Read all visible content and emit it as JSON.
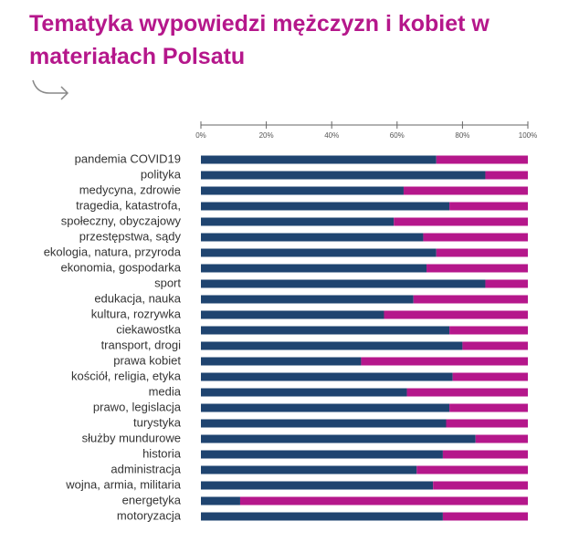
{
  "chart_data": {
    "type": "stacked-bar-horizontal",
    "title": "Tematyka wypowiedzi mężczyzn i kobiet w materiałach Polsatu",
    "categories": [
      "pandemia COVID19",
      "polityka",
      "medycyna, zdrowie",
      "tragedia, katastrofa,",
      "społeczny, obyczajowy",
      "przestępstwa, sądy",
      "ekologia, natura, przyroda",
      "ekonomia, gospodarka",
      "sport",
      "edukacja, nauka",
      "kultura, rozrywka",
      "ciekawostka",
      "transport, drogi",
      "prawa kobiet",
      "kościół, religia, etyka",
      "media",
      "prawo, legislacja",
      "turystyka",
      "służby mundurowe",
      "historia",
      "administracja",
      "wojna, armia, militaria",
      "energetyka",
      "motoryzacja"
    ],
    "series": [
      {
        "color": "#1f4470",
        "values": [
          72,
          87,
          62,
          76,
          59,
          68,
          72,
          69,
          87,
          65,
          56,
          76,
          80,
          49,
          77,
          63,
          76,
          75,
          84,
          74,
          66,
          71,
          12,
          74
        ]
      },
      {
        "color": "#b5178b",
        "values": [
          28,
          13,
          38,
          24,
          41,
          32,
          28,
          31,
          13,
          35,
          44,
          24,
          20,
          51,
          23,
          37,
          24,
          25,
          16,
          26,
          34,
          29,
          88,
          26
        ]
      }
    ],
    "xlim": [
      0,
      100
    ],
    "xticks": [
      {
        "value": 0,
        "label": "0%"
      },
      {
        "value": 20,
        "label": "20%"
      },
      {
        "value": 40,
        "label": "40%"
      },
      {
        "value": 60,
        "label": "60%"
      },
      {
        "value": 80,
        "label": "80%"
      },
      {
        "value": 100,
        "label": "100%"
      }
    ]
  }
}
